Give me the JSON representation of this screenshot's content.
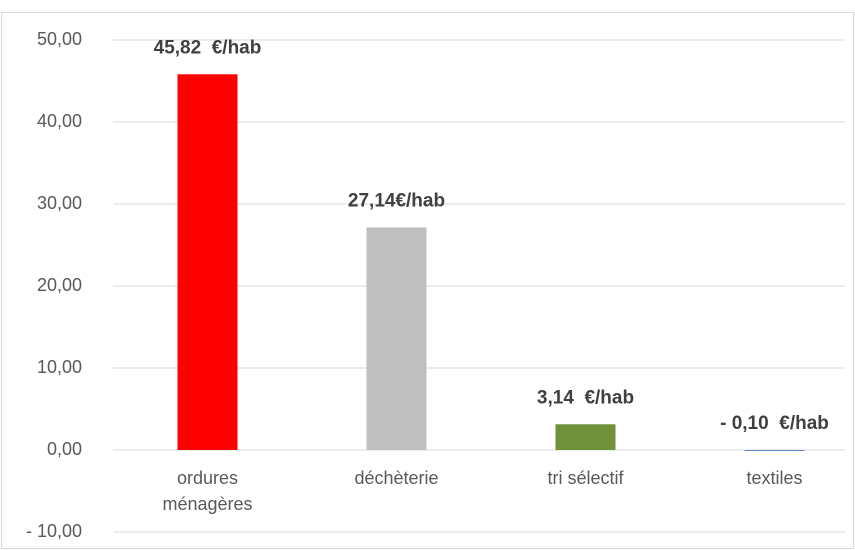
{
  "chart_data": {
    "type": "bar",
    "categories": [
      "ordures ménagères",
      "déchèterie",
      "tri sélectif",
      "textiles"
    ],
    "values": [
      45.82,
      27.14,
      3.14,
      -0.1
    ],
    "value_labels": [
      "45,82  €/hab",
      "27,14€/hab",
      "3,14  €/hab",
      "- 0,10  €/hab"
    ],
    "colors": [
      "#ff0000",
      "#bfbfbf",
      "#70923a",
      "#4472c4"
    ],
    "ylim": [
      -10,
      50
    ],
    "yticks": [
      {
        "value": -10,
        "label": "- 10,00"
      },
      {
        "value": 0,
        "label": "0,00"
      },
      {
        "value": 10,
        "label": "10,00"
      },
      {
        "value": 20,
        "label": "20,00"
      },
      {
        "value": 30,
        "label": "30,00"
      },
      {
        "value": 40,
        "label": "40,00"
      },
      {
        "value": 50,
        "label": "50,00"
      }
    ],
    "grid": true
  }
}
